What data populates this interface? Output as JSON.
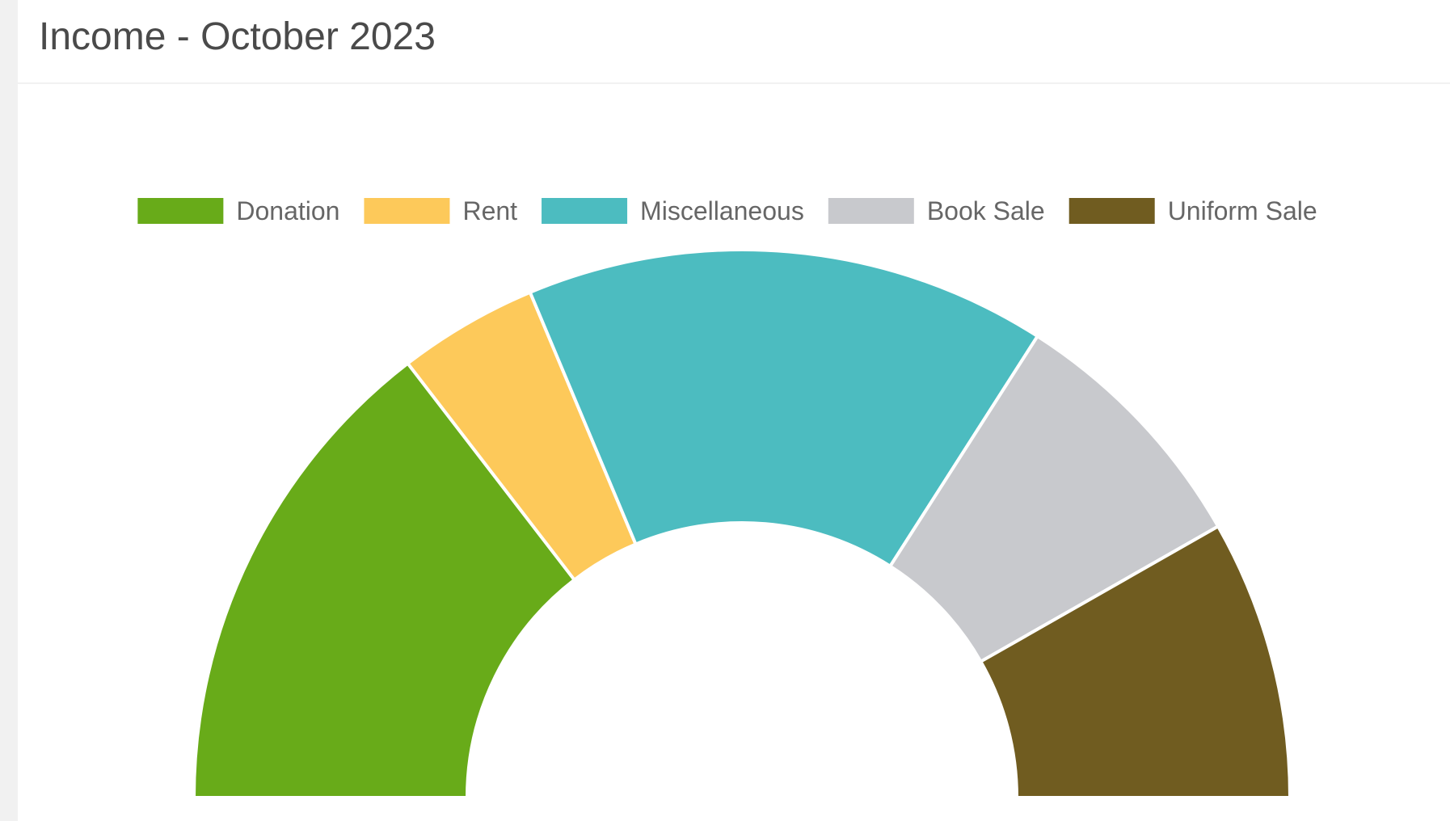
{
  "card": {
    "title": "Income - October 2023"
  },
  "chart_data": {
    "type": "pie",
    "variant": "half-doughnut",
    "title": "Income - October 2023",
    "legend_position": "top",
    "categories": [
      "Donation",
      "Rent",
      "Miscellaneous",
      "Book Sale",
      "Uniform Sale"
    ],
    "values": [
      26.5,
      7.5,
      28,
      14,
      15
    ],
    "unit": "relative share (approx.)",
    "colors": [
      "#68ab19",
      "#fdc95a",
      "#4cbcc0",
      "#c8c9cd",
      "#705c20"
    ]
  }
}
